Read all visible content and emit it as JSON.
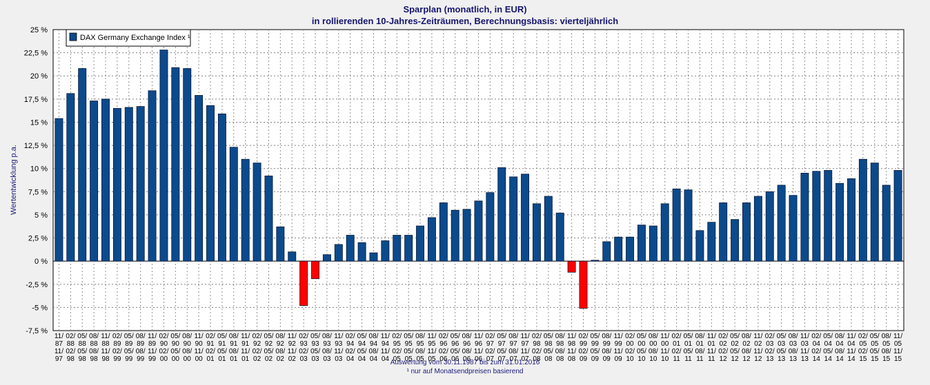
{
  "chart_data": {
    "type": "bar",
    "title": "Sparplan (monatlich, in EUR)",
    "subtitle": "in rollierenden 10-Jahres-Zeiträumen, Berechnungsbasis: vierteljährlich",
    "ylabel": "Wertentwicklung p.a.",
    "xlabel": "",
    "ylim": [
      -7.5,
      25
    ],
    "yticks": [
      "25 %",
      "22,5 %",
      "20 %",
      "17,5 %",
      "15 %",
      "12,5 %",
      "10 %",
      "7,5 %",
      "5 %",
      "2,5 %",
      "0 %",
      "-2,5 %",
      "-5 %",
      "-7,5 %"
    ],
    "grid": true,
    "legend": {
      "position": "top-left",
      "entries": [
        "DAX Germany Exchange Index ¹"
      ]
    },
    "colors": {
      "positive": "#0b4a8c",
      "negative": "#ff0000",
      "text": "#16166e"
    },
    "categories": [
      "11/87 11/97",
      "02/88 02/98",
      "05/88 05/98",
      "08/88 08/98",
      "11/88 11/98",
      "02/89 02/99",
      "05/89 05/99",
      "08/89 08/99",
      "11/89 11/99",
      "02/90 02/00",
      "05/90 05/00",
      "08/90 08/00",
      "11/90 11/00",
      "02/91 02/01",
      "05/91 05/01",
      "08/91 08/01",
      "11/91 11/01",
      "02/92 02/02",
      "05/92 05/02",
      "08/92 08/02",
      "11/92 11/02",
      "02/93 02/03",
      "05/93 05/03",
      "08/93 08/03",
      "11/93 11/03",
      "02/94 02/04",
      "05/94 05/04",
      "08/94 08/04",
      "11/94 11/04",
      "02/95 02/05",
      "05/95 05/05",
      "08/95 08/05",
      "11/95 11/05",
      "02/96 02/06",
      "05/96 05/06",
      "08/96 08/06",
      "11/96 11/06",
      "02/97 02/07",
      "05/97 05/07",
      "08/97 08/07",
      "11/97 11/07",
      "02/98 02/08",
      "05/98 05/08",
      "08/98 08/08",
      "11/98 11/08",
      "02/99 02/09",
      "05/99 05/09",
      "08/99 08/09",
      "11/99 11/09",
      "02/00 02/10",
      "05/00 05/10",
      "08/00 08/10",
      "11/00 11/10",
      "02/01 02/11",
      "05/01 05/11",
      "08/01 08/11",
      "11/01 11/11",
      "02/02 02/12",
      "05/02 05/12",
      "08/02 08/12",
      "11/02 11/12",
      "02/03 02/13",
      "05/03 05/13",
      "08/03 08/13",
      "11/03 11/13",
      "02/04 02/14",
      "05/04 05/14",
      "08/04 08/14",
      "11/04 11/14",
      "02/05 02/15",
      "05/05 05/15",
      "08/05 08/15",
      "11/05 11/15"
    ],
    "values": [
      15.4,
      18.1,
      20.8,
      17.3,
      17.5,
      16.5,
      16.6,
      16.7,
      18.4,
      22.8,
      20.9,
      20.8,
      17.9,
      16.8,
      15.9,
      12.3,
      11.0,
      10.6,
      9.2,
      3.7,
      1.0,
      -4.8,
      -1.9,
      0.7,
      1.8,
      2.8,
      2.0,
      0.9,
      2.2,
      2.8,
      2.8,
      3.8,
      4.7,
      6.3,
      5.5,
      5.6,
      6.5,
      7.4,
      10.1,
      9.1,
      9.4,
      6.2,
      7.0,
      5.2,
      -1.2,
      -5.1,
      0.1,
      2.1,
      2.6,
      2.6,
      3.9,
      3.8,
      6.2,
      7.8,
      7.7,
      3.3,
      4.2,
      6.3,
      4.5,
      6.3,
      7.0,
      7.5,
      8.2,
      7.1,
      9.5,
      9.7,
      9.8,
      8.4,
      8.9,
      11.0,
      10.6,
      8.2,
      9.8
    ]
  },
  "footer": {
    "line1": "Auswertung vom 30.11.1987 bis zum 31.01.2016",
    "line2": "¹ nur auf Monatsendpreisen basierend"
  }
}
